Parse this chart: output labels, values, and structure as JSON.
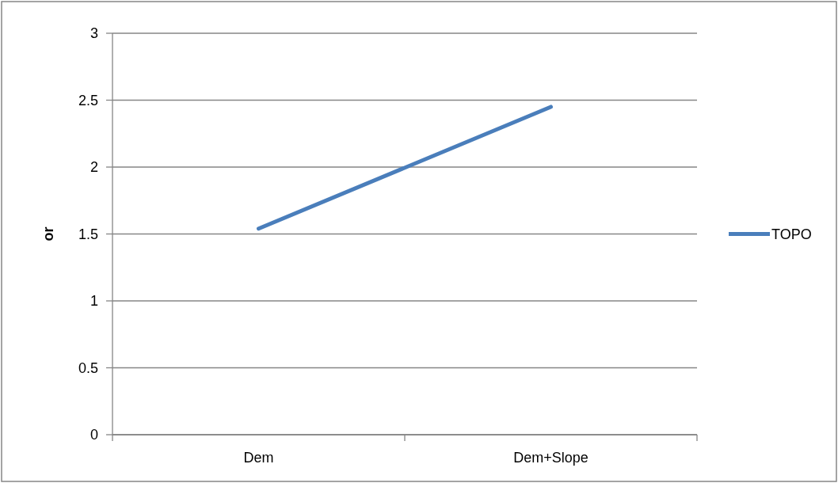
{
  "chart_data": {
    "type": "line",
    "ylabel": "or",
    "categories": [
      "Dem",
      "Dem+Slope"
    ],
    "series": [
      {
        "name": "TOPO",
        "color": "#4a7ebb",
        "values": [
          1.54,
          2.45
        ]
      }
    ],
    "ylim": [
      0,
      3
    ],
    "yticks": [
      0,
      0.5,
      1,
      1.5,
      2,
      2.5,
      3
    ],
    "grid": "y",
    "legend": "right",
    "marker": "none"
  }
}
